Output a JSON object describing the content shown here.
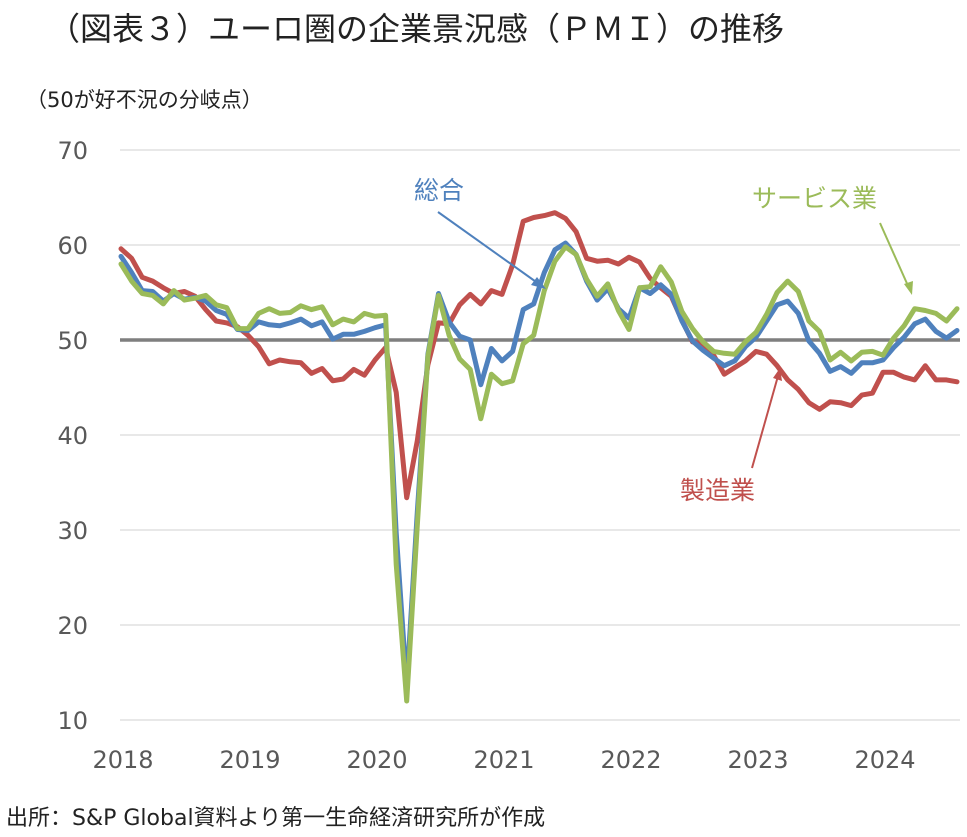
{
  "chart_data": {
    "type": "line",
    "title": "（図表３）ユーロ圏の企業景況感（ＰＭＩ）の推移",
    "unit_note": "（50が好不況の分岐点）",
    "source": "出所：S&P Global資料より第一生命経済研究所が作成",
    "ylim": [
      10,
      70
    ],
    "yticks": [
      "70",
      "60",
      "50",
      "40",
      "30",
      "20",
      "10"
    ],
    "xticks": [
      "2018",
      "2019",
      "2020",
      "2021",
      "2022",
      "2023",
      "2024"
    ],
    "x_start": 2018.0,
    "x_step": 0.08333,
    "threshold": 50,
    "series": [
      {
        "name": "総合",
        "color": "#4f81bd",
        "values": [
          58.8,
          57.1,
          55.2,
          55.1,
          54.1,
          54.9,
          54.3,
          54.5,
          54.1,
          53.1,
          52.7,
          51.1,
          51.0,
          51.9,
          51.6,
          51.5,
          51.8,
          52.2,
          51.5,
          51.9,
          50.1,
          50.6,
          50.6,
          50.9,
          51.3,
          51.6,
          29.7,
          13.6,
          31.9,
          48.5,
          54.9,
          51.9,
          50.4,
          50.0,
          45.3,
          49.1,
          47.8,
          48.8,
          53.2,
          53.8,
          57.1,
          59.5,
          60.2,
          59.0,
          56.2,
          54.2,
          55.4,
          53.3,
          52.3,
          55.5,
          54.9,
          55.8,
          54.8,
          52.0,
          49.9,
          48.9,
          48.1,
          47.3,
          47.8,
          49.3,
          50.3,
          52.0,
          53.7,
          54.1,
          52.8,
          49.9,
          48.6,
          46.7,
          47.2,
          46.5,
          47.6,
          47.6,
          47.9,
          49.2,
          50.3,
          51.7,
          52.2,
          50.9,
          50.2,
          51.0
        ]
      },
      {
        "name": "製造業",
        "color": "#c0504d",
        "values": [
          59.6,
          58.6,
          56.6,
          56.2,
          55.5,
          54.9,
          55.1,
          54.6,
          53.2,
          52.0,
          51.8,
          51.4,
          50.5,
          49.3,
          47.5,
          47.9,
          47.7,
          47.6,
          46.5,
          47.0,
          45.7,
          45.9,
          46.9,
          46.3,
          47.9,
          49.2,
          44.5,
          33.4,
          39.4,
          47.4,
          51.8,
          51.7,
          53.7,
          54.8,
          53.8,
          55.2,
          54.8,
          57.9,
          62.5,
          62.9,
          63.1,
          63.4,
          62.8,
          61.4,
          58.6,
          58.3,
          58.4,
          58.0,
          58.7,
          58.2,
          56.5,
          55.5,
          54.6,
          52.1,
          49.8,
          49.6,
          48.4,
          46.4,
          47.1,
          47.8,
          48.8,
          48.5,
          47.3,
          45.8,
          44.8,
          43.4,
          42.7,
          43.5,
          43.4,
          43.1,
          44.2,
          44.4,
          46.6,
          46.6,
          46.1,
          45.8,
          47.3,
          45.8,
          45.8,
          45.6
        ]
      },
      {
        "name": "サービス業",
        "color": "#9bbb59",
        "values": [
          58.0,
          56.2,
          54.9,
          54.7,
          53.8,
          55.2,
          54.2,
          54.4,
          54.7,
          53.7,
          53.4,
          51.2,
          51.2,
          52.8,
          53.3,
          52.8,
          52.9,
          53.6,
          53.2,
          53.5,
          51.6,
          52.2,
          51.9,
          52.8,
          52.5,
          52.6,
          26.4,
          12.0,
          30.5,
          48.3,
          54.7,
          50.5,
          48.0,
          46.9,
          41.7,
          46.4,
          45.4,
          45.7,
          49.6,
          50.5,
          55.2,
          58.3,
          59.8,
          59.0,
          56.4,
          54.6,
          55.9,
          53.1,
          51.1,
          55.5,
          55.6,
          57.7,
          56.1,
          53.0,
          51.2,
          49.8,
          48.8,
          48.6,
          48.5,
          49.8,
          50.8,
          52.7,
          55.0,
          56.2,
          55.1,
          52.0,
          50.9,
          47.9,
          48.7,
          47.8,
          48.7,
          48.8,
          48.4,
          50.2,
          51.5,
          53.3,
          53.1,
          52.8,
          52.0,
          53.3
        ]
      }
    ],
    "annotations": {
      "composite": "総合",
      "services": "サービス業",
      "manufacturing": "製造業"
    }
  }
}
